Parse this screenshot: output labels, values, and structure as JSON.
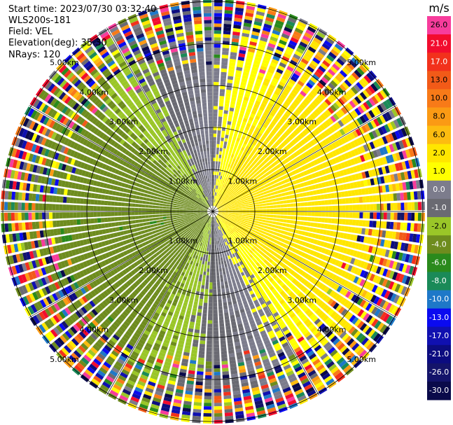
{
  "header": {
    "start_time": "Start time: 2023/07/30 03:32:40",
    "instrument": "WLS200s-181",
    "field": "Field: VEL",
    "elevation": "Elevation(deg): 35.30",
    "nrays": "NRays: 120"
  },
  "chart_data": {
    "type": "heatmap",
    "projection": "polar",
    "field": "VEL",
    "nrays": 120,
    "elevation_deg": 35.3,
    "range_rings_km": [
      1,
      2,
      3,
      4,
      5
    ],
    "ring_label_texts": [
      "1.00km",
      "2.00km",
      "3.00km",
      "4.00km",
      "5.00km"
    ],
    "spoke_angles_deg": [
      0,
      30,
      60,
      90,
      120,
      150,
      180,
      210,
      240,
      270,
      300,
      330
    ],
    "pattern": "near-range coherent dipole (positive toward ENE, negative toward WSW), noisy multicolor returns beyond ~3.5 km",
    "colorbar": {
      "title": "m/s",
      "tick_labels": [
        "26.0",
        "21.0",
        "17.0",
        "13.0",
        "10.0",
        "8.0",
        "6.0",
        "2.0",
        "1.0",
        "0.0",
        "-1.0",
        "-2.0",
        "-4.0",
        "-6.0",
        "-8.0",
        "-10.0",
        "-13.0",
        "-17.0",
        "-21.0",
        "-26.0",
        "-30.0"
      ],
      "bins": [
        {
          "color": "#f73c9c",
          "label": "26.0"
        },
        {
          "color": "#f20c2e",
          "label": "21.0"
        },
        {
          "color": "#f2311c",
          "label": "17.0"
        },
        {
          "color": "#f25a18",
          "label": "13.0"
        },
        {
          "color": "#f87a18",
          "label": "10.0"
        },
        {
          "color": "#fb9a14",
          "label": "8.0"
        },
        {
          "color": "#fdbc10",
          "label": "6.0"
        },
        {
          "color": "#ffe600",
          "label": "2.0"
        },
        {
          "color": "#ffff00",
          "label": "1.0"
        },
        {
          "color": "#7c7c8c",
          "label": "0.0"
        },
        {
          "color": "#6a6a72",
          "label": "-1.0"
        },
        {
          "color": "#9ac628",
          "label": "-2.0"
        },
        {
          "color": "#6e8c1e",
          "label": "-4.0"
        },
        {
          "color": "#2a8a1c",
          "label": "-6.0"
        },
        {
          "color": "#1a8a58",
          "label": "-8.0"
        },
        {
          "color": "#1e78c8",
          "label": "-10.0"
        },
        {
          "color": "#0a0af0",
          "label": "-13.0"
        },
        {
          "color": "#1010b0",
          "label": "-17.0"
        },
        {
          "color": "#0c0c80",
          "label": "-21.0"
        },
        {
          "color": "#14146a",
          "label": "-26.0"
        },
        {
          "color": "#0a0a4a",
          "label": "-30.0"
        }
      ]
    }
  }
}
